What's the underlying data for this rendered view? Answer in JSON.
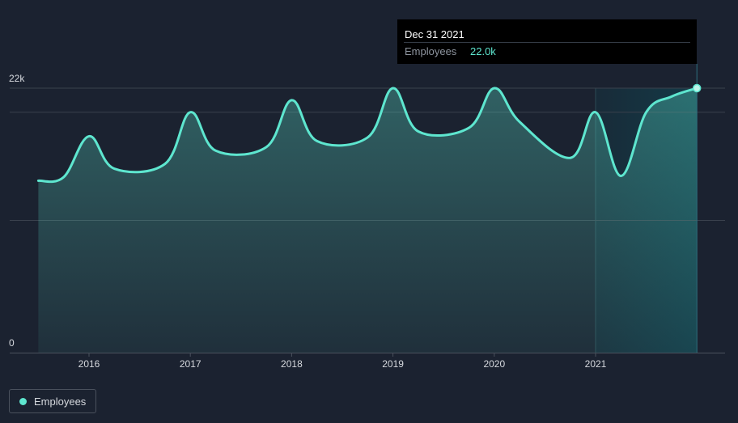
{
  "colors": {
    "background": "#1b2230",
    "line": "#5ee6cf",
    "grid": "#3a414d",
    "forecast_band": "#133b48"
  },
  "tooltip": {
    "date": "Dec 31 2021",
    "label": "Employees",
    "value": "22.0k"
  },
  "legend": {
    "label": "Employees"
  },
  "chart_data": {
    "type": "area",
    "title": "",
    "xlabel": "",
    "ylabel": "",
    "ylim": [
      0,
      22000
    ],
    "y_tick_labels": [
      {
        "value": 22000,
        "label": "22k"
      },
      {
        "value": 0,
        "label": "0"
      }
    ],
    "x_tick_labels": [
      "2016",
      "2017",
      "2018",
      "2019",
      "2020",
      "2021"
    ],
    "x_ticks": [
      2016,
      2017,
      2018,
      2019,
      2020,
      2021
    ],
    "grid": true,
    "legend_position": "bottom-left",
    "highlight_from": 2021.0,
    "series": [
      {
        "name": "Employees",
        "x": [
          2015.5,
          2015.75,
          2016.0,
          2016.25,
          2016.75,
          2017.0,
          2017.25,
          2017.75,
          2018.0,
          2018.25,
          2018.75,
          2019.0,
          2019.25,
          2019.75,
          2020.0,
          2020.25,
          2020.75,
          2021.0,
          2021.25,
          2021.5,
          2021.75,
          2022.0
        ],
        "values": [
          14300,
          14600,
          18000,
          15300,
          15700,
          20000,
          16800,
          17100,
          21000,
          17600,
          17900,
          22000,
          18400,
          18700,
          22000,
          19200,
          16200,
          20000,
          14700,
          20000,
          21300,
          22000
        ]
      }
    ]
  }
}
